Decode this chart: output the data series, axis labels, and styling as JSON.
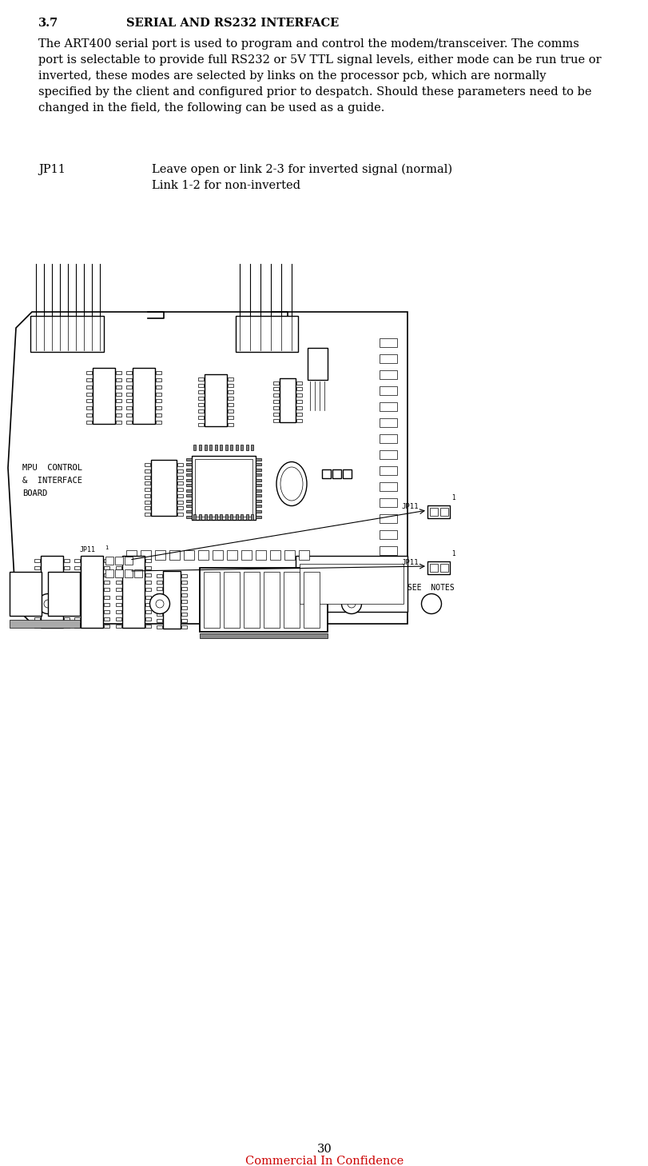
{
  "title_num": "3.7",
  "title_text": "SERIAL AND RS232 INTERFACE",
  "body_text": "The ART400 serial port is used to program and control the modem/transceiver. The comms\nport is selectable to provide full RS232 or 5V TTL signal levels, either mode can be run true or\ninverted, these modes are selected by links on the processor pcb, which are normally\nspecified by the client and configured prior to despatch. Should these parameters need to be\nchanged in the field, the following can be used as a guide.",
  "jp11_label": "JP11",
  "jp11_line1": "Leave open or link 2-3 for inverted signal (normal)",
  "jp11_line2": "Link 1-2 for non-inverted",
  "page_number": "30",
  "footer_text": "Commercial In Confidence",
  "bg_color": "#ffffff",
  "text_color": "#000000",
  "footer_color": "#cc0000",
  "title_fontsize": 10.5,
  "body_fontsize": 10.5,
  "jp11_fontsize": 10.5,
  "footer_fontsize": 10.5
}
